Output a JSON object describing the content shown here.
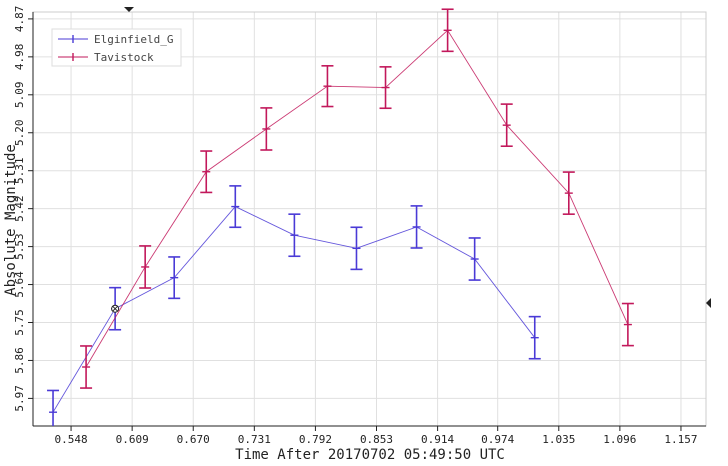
{
  "chart_data": {
    "type": "line",
    "xlabel": "Time After 20170702 05:49:50 UTC",
    "ylabel": "Absolute Magnitude",
    "x_ticks": [
      "0.548",
      "0.609",
      "0.670",
      "0.731",
      "0.792",
      "0.853",
      "0.914",
      "0.974",
      "1.035",
      "1.096",
      "1.157"
    ],
    "y_ticks": [
      "4.87",
      "4.98",
      "5.09",
      "5.20",
      "5.31",
      "5.42",
      "5.53",
      "5.64",
      "5.75",
      "5.86",
      "5.97"
    ],
    "xlim": [
      0.51,
      1.182
    ],
    "ylim": [
      6.05,
      4.85
    ],
    "y_inverted": true,
    "grid": true,
    "legend_position": "top-left",
    "series": [
      {
        "name": "Elginfield_G",
        "color": "#4a3ad6",
        "points": [
          {
            "x": 0.53,
            "y": 6.01,
            "err": 0.063
          },
          {
            "x": 0.592,
            "y": 5.71,
            "err": 0.061
          },
          {
            "x": 0.651,
            "y": 5.62,
            "err": 0.06
          },
          {
            "x": 0.712,
            "y": 5.414,
            "err": 0.06
          },
          {
            "x": 0.771,
            "y": 5.497,
            "err": 0.061
          },
          {
            "x": 0.833,
            "y": 5.535,
            "err": 0.061
          },
          {
            "x": 0.893,
            "y": 5.473,
            "err": 0.061
          },
          {
            "x": 0.951,
            "y": 5.566,
            "err": 0.061
          },
          {
            "x": 1.011,
            "y": 5.794,
            "err": 0.061
          }
        ]
      },
      {
        "name": "Tavistock",
        "color": "#c2185b",
        "points": [
          {
            "x": 0.563,
            "y": 5.879,
            "err": 0.061
          },
          {
            "x": 0.622,
            "y": 5.589,
            "err": 0.061
          },
          {
            "x": 0.683,
            "y": 5.313,
            "err": 0.06
          },
          {
            "x": 0.743,
            "y": 5.189,
            "err": 0.061
          },
          {
            "x": 0.804,
            "y": 5.065,
            "err": 0.059
          },
          {
            "x": 0.862,
            "y": 5.069,
            "err": 0.06
          },
          {
            "x": 0.924,
            "y": 4.903,
            "err": 0.061
          },
          {
            "x": 0.983,
            "y": 5.178,
            "err": 0.061
          },
          {
            "x": 1.045,
            "y": 5.375,
            "err": 0.061
          },
          {
            "x": 1.104,
            "y": 5.756,
            "err": 0.061
          }
        ]
      }
    ]
  }
}
